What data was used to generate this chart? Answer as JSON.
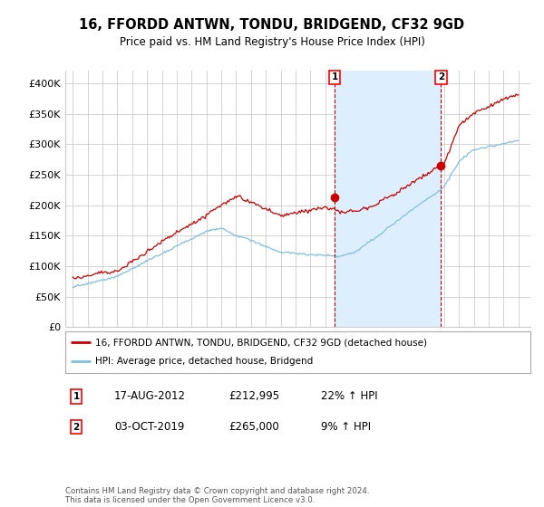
{
  "title": "16, FFORDD ANTWN, TONDU, BRIDGEND, CF32 9GD",
  "subtitle": "Price paid vs. HM Land Registry's House Price Index (HPI)",
  "ylim": [
    0,
    420000
  ],
  "yticks": [
    0,
    50000,
    100000,
    150000,
    200000,
    250000,
    300000,
    350000,
    400000
  ],
  "ytick_labels": [
    "£0",
    "£50K",
    "£100K",
    "£150K",
    "£200K",
    "£250K",
    "£300K",
    "£350K",
    "£400K"
  ],
  "hpi_color": "#7fbfdf",
  "price_color": "#cc0000",
  "shade_color": "#ddeeff",
  "marker1_year": 2012.63,
  "marker2_year": 2019.78,
  "marker1_price": 212995,
  "marker2_price": 265000,
  "annotation1": {
    "label": "1",
    "date": "17-AUG-2012",
    "price": "£212,995",
    "hpi": "22% ↑ HPI"
  },
  "annotation2": {
    "label": "2",
    "date": "03-OCT-2019",
    "price": "£265,000",
    "hpi": "9% ↑ HPI"
  },
  "legend_line1": "16, FFORDD ANTWN, TONDU, BRIDGEND, CF32 9GD (detached house)",
  "legend_line2": "HPI: Average price, detached house, Bridgend",
  "footnote": "Contains HM Land Registry data © Crown copyright and database right 2024.\nThis data is licensed under the Open Government Licence v3.0.",
  "background_color": "#ffffff",
  "grid_color": "#cccccc"
}
